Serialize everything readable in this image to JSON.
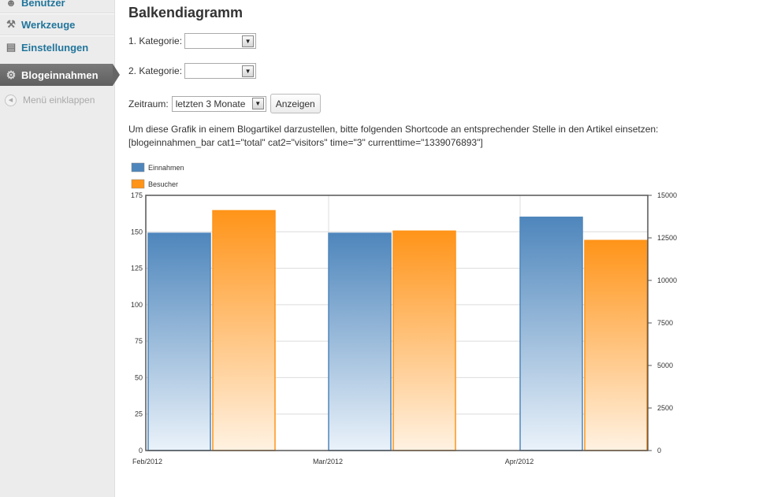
{
  "sidebar": {
    "items": [
      {
        "label": "Benutzer",
        "icon": "users-icon"
      },
      {
        "label": "Werkzeuge",
        "icon": "tools-icon"
      },
      {
        "label": "Einstellungen",
        "icon": "settings-icon"
      }
    ],
    "active": {
      "label": "Blogeinnahmen",
      "icon": "gear-icon"
    },
    "collapse_label": "Menü einklappen"
  },
  "page": {
    "title": "Balkendiagramm",
    "category1_label": "1. Kategorie:",
    "category1_value": "",
    "category2_label": "2. Kategorie:",
    "category2_value": "",
    "period_label": "Zeitraum:",
    "period_value": "letzten 3 Monate",
    "show_button": "Anzeigen",
    "info_text": "Um diese Grafik in einem Blogartikel darzustellen, bitte folgenden Shortcode an entsprechender Stelle in den Artikel einsetzen:",
    "shortcode": "[blogeinnahmen_bar cat1=\"total\" cat2=\"visitors\" time=\"3\" currenttime=\"1339076893\"]"
  },
  "chart_data": {
    "type": "bar",
    "categories": [
      "Feb/2012",
      "Mar/2012",
      "Apr/2012"
    ],
    "series": [
      {
        "name": "Einnahmen",
        "axis": "left",
        "color": "#4e86bc",
        "values": [
          149,
          149,
          160
        ]
      },
      {
        "name": "Besucher",
        "axis": "right",
        "color": "#ff9419",
        "values": [
          14100,
          12900,
          12350
        ]
      }
    ],
    "y_left": {
      "min": 0,
      "max": 175,
      "ticks": [
        "0",
        "25",
        "50",
        "75",
        "100",
        "125",
        "150",
        "175"
      ]
    },
    "y_right": {
      "min": 0,
      "max": 15000,
      "ticks": [
        "0",
        "2500",
        "5000",
        "7500",
        "10000",
        "12500",
        "15000"
      ]
    },
    "legend_position": "top-left",
    "grid": true
  }
}
